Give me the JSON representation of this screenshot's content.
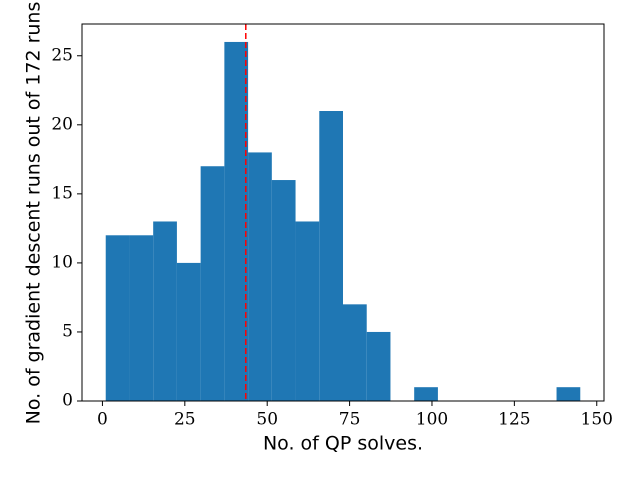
{
  "chart_data": {
    "type": "histogram",
    "xlabel": "No. of QP solves.",
    "ylabel": "No. of gradient descent runs out of 172 runs",
    "bins": [
      1,
      8.2,
      15.4,
      22.6,
      29.8,
      37,
      44.2,
      51.4,
      58.6,
      65.8,
      73,
      80.2,
      87.4,
      94.6,
      101.8,
      109,
      116.2,
      123.4,
      130.6,
      137.8,
      145
    ],
    "values": [
      12,
      12,
      13,
      10,
      17,
      26,
      18,
      16,
      13,
      21,
      7,
      5,
      0,
      1,
      0,
      0,
      0,
      0,
      0,
      1
    ],
    "color": "#1f77b4",
    "vline": 43.5,
    "vline_color": "#ff0000",
    "xlim": [
      -6.2,
      152.2
    ],
    "xticks": [
      0,
      25,
      50,
      75,
      100,
      125,
      150
    ],
    "ylim": [
      0,
      27.3
    ],
    "yticks": [
      0,
      5,
      10,
      15,
      20,
      25
    ]
  }
}
